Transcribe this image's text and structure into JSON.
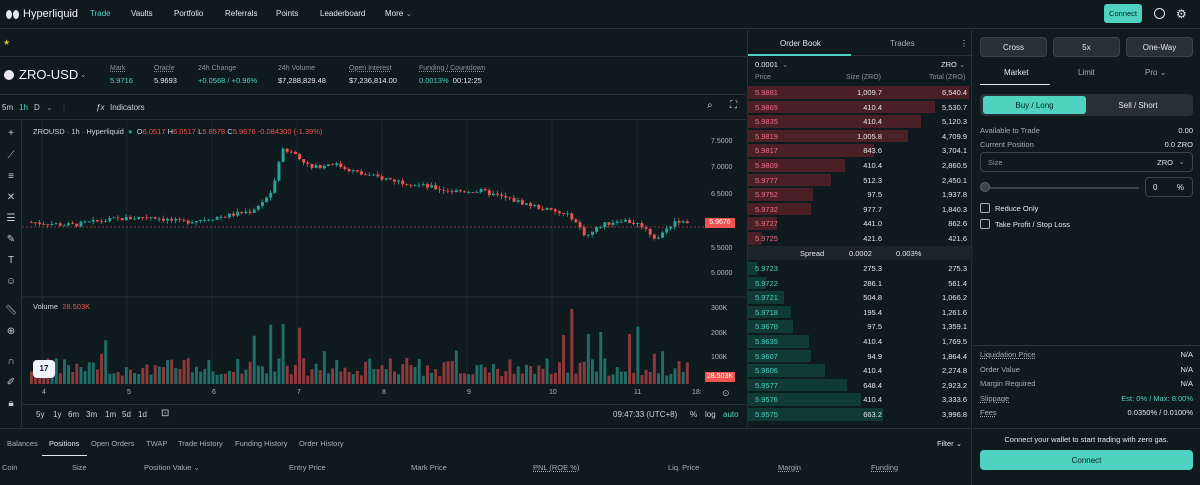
{
  "nav": {
    "brand": "Hyperliquid",
    "links": [
      "Trade",
      "Vaults",
      "Portfolio",
      "Referrals",
      "Points",
      "Leaderboard",
      "More"
    ],
    "connect": "Connect"
  },
  "ticker": {
    "pair": "ZRO-USD",
    "stats": [
      {
        "label": "Mark",
        "value": "5.9716",
        "teal": true
      },
      {
        "label": "Oracle",
        "value": "5.9693",
        "teal": false
      },
      {
        "label": "24h Change",
        "value": "+0.0568 / +0.96%",
        "teal": true
      },
      {
        "label": "24h Volume",
        "value": "$7,288,829.48",
        "teal": false
      },
      {
        "label": "Open Interest",
        "value": "$7,236,814.00",
        "teal": false
      },
      {
        "label": "Funding / Countdown",
        "value": "0.0013%",
        "value2": "00:12:25",
        "teal": true
      }
    ]
  },
  "chart_toolbar": {
    "timeframes": [
      "5m",
      "1h",
      "D"
    ],
    "indicators": "Indicators"
  },
  "chart": {
    "legend_title": "ZROUSD · 1h · Hyperliquid",
    "open": "6.0517",
    "high": "6.0517",
    "low": "5.8578",
    "close": "5.9676",
    "change": "-0.084300 (-1.39%)",
    "volume_label": "Volume",
    "volume_value": "28.503K",
    "price_tag": "5.9676",
    "volume_tag": "28.503K",
    "tv": "17",
    "price_axis": [
      "7.5000",
      "7.0000",
      "6.5000",
      "6.0000",
      "5.5000",
      "5.0000"
    ],
    "volume_axis": [
      "300K",
      "200K",
      "100K"
    ],
    "time_axis": [
      "4",
      "5",
      "6",
      "7",
      "8",
      "9",
      "10",
      "11",
      "18:"
    ],
    "ranges": [
      "5y",
      "1y",
      "6m",
      "3m",
      "1m",
      "5d",
      "1d"
    ],
    "clock": "09:47:33 (UTC+8)",
    "scale_opts": [
      "%",
      "log",
      "auto"
    ]
  },
  "chart_data": {
    "type": "candlestick",
    "price_range": [
      4.75,
      7.75
    ],
    "volume_range": [
      0,
      320000
    ],
    "days": [
      "4",
      "5",
      "6",
      "7",
      "8",
      "9",
      "10",
      "11"
    ],
    "last_close": 5.9676,
    "last_volume": 28503
  },
  "orderbook": {
    "tabs": [
      "Order Book",
      "Trades"
    ],
    "tick": "0.0001",
    "unit": "ZRO",
    "headers": [
      "Price",
      "Size (ZRO)",
      "Total (ZRO)"
    ],
    "asks": [
      {
        "price": "5.9881",
        "size": "1,009.7",
        "total": "6,540.4",
        "depth": 0.98
      },
      {
        "price": "5.9865",
        "size": "410.4",
        "total": "5,530.7",
        "depth": 0.83
      },
      {
        "price": "5.9835",
        "size": "410.4",
        "total": "5,120.3",
        "depth": 0.77
      },
      {
        "price": "5.9819",
        "size": "1,005.8",
        "total": "4,709.9",
        "depth": 0.71
      },
      {
        "price": "5.9817",
        "size": "843.6",
        "total": "3,704.1",
        "depth": 0.56
      },
      {
        "price": "5.9809",
        "size": "410.4",
        "total": "2,860.5",
        "depth": 0.43
      },
      {
        "price": "5.9777",
        "size": "512.3",
        "total": "2,450.1",
        "depth": 0.37
      },
      {
        "price": "5.9752",
        "size": "97.5",
        "total": "1,937.8",
        "depth": 0.29
      },
      {
        "price": "5.9732",
        "size": "977.7",
        "total": "1,840.3",
        "depth": 0.28
      },
      {
        "price": "5.9727",
        "size": "441.0",
        "total": "862.6",
        "depth": 0.13
      },
      {
        "price": "5.9725",
        "size": "421.6",
        "total": "421.6",
        "depth": 0.06
      }
    ],
    "spread_label": "Spread",
    "spread_value": "0.0002",
    "spread_pct": "0.003%",
    "bids": [
      {
        "price": "5.9723",
        "size": "275.3",
        "total": "275.3",
        "depth": 0.04
      },
      {
        "price": "5.9722",
        "size": "286.1",
        "total": "561.4",
        "depth": 0.08
      },
      {
        "price": "5.9721",
        "size": "504.8",
        "total": "1,066.2",
        "depth": 0.16
      },
      {
        "price": "5.9718",
        "size": "195.4",
        "total": "1,261.6",
        "depth": 0.19
      },
      {
        "price": "5.9678",
        "size": "97.5",
        "total": "1,359.1",
        "depth": 0.2
      },
      {
        "price": "5.9635",
        "size": "410.4",
        "total": "1,769.5",
        "depth": 0.27
      },
      {
        "price": "5.9607",
        "size": "94.9",
        "total": "1,864.4",
        "depth": 0.28
      },
      {
        "price": "5.9606",
        "size": "410.4",
        "total": "2,274.8",
        "depth": 0.34
      },
      {
        "price": "5.9577",
        "size": "648.4",
        "total": "2,923.2",
        "depth": 0.44
      },
      {
        "price": "5.9576",
        "size": "410.4",
        "total": "3,333.6",
        "depth": 0.5
      },
      {
        "price": "5.9575",
        "size": "663.2",
        "total": "3,996.8",
        "depth": 0.6
      }
    ]
  },
  "order_form": {
    "margin_mode": "Cross",
    "leverage": "5x",
    "position_mode": "One-Way",
    "order_types": [
      "Market",
      "Limit",
      "Pro"
    ],
    "buy_label": "Buy / Long",
    "sell_label": "Sell / Short",
    "available_label": "Available to Trade",
    "available_value": "0.00",
    "position_label": "Current Position",
    "position_value": "0.0 ZRO",
    "size_placeholder": "Size",
    "size_unit": "ZRO",
    "percent_value": "0",
    "percent_unit": "%",
    "reduce_only": "Reduce Only",
    "tpsl": "Take Profit / Stop Loss",
    "details": [
      {
        "label": "Liquidation Price",
        "value": "N/A",
        "underline": true
      },
      {
        "label": "Order Value",
        "value": "N/A",
        "underline": false
      },
      {
        "label": "Margin Required",
        "value": "N/A",
        "underline": false
      },
      {
        "label": "Slippage",
        "value": "Est: 0% / Max: 8.00%",
        "underline": true
      },
      {
        "label": "Fees",
        "value": "0.0350% / 0.0100%",
        "underline": true
      }
    ],
    "wallet_text": "Connect your wallet to start trading with zero gas.",
    "connect": "Connect"
  },
  "bottom": {
    "tabs": [
      "Balances",
      "Positions",
      "Open Orders",
      "TWAP",
      "Trade History",
      "Funding History",
      "Order History"
    ],
    "filter": "Filter",
    "columns": [
      "Coin",
      "Size",
      "Position Value",
      "Entry Price",
      "Mark Price",
      "PNL (ROE %)",
      "Liq. Price",
      "Margin",
      "Funding"
    ]
  },
  "colors": {
    "accent": "#50d2c1",
    "up": "#26a69a",
    "down": "#ef5350",
    "bg": "#0f1a1f"
  }
}
